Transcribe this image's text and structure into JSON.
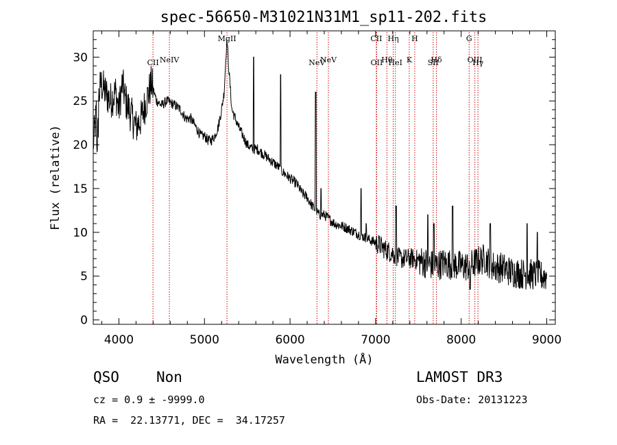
{
  "chart_data": {
    "type": "line",
    "title": "spec-56650-M31021N31M1_sp11-202.fits",
    "xlabel": "Wavelength (Å)",
    "ylabel": "Flux (relative)",
    "xlim": [
      3700,
      9100
    ],
    "ylim": [
      -0.5,
      33
    ],
    "xticks": [
      4000,
      5000,
      6000,
      7000,
      8000,
      9000
    ],
    "yticks": [
      0,
      5,
      10,
      15,
      20,
      25,
      30
    ],
    "series": [
      {
        "name": "spectrum",
        "x": [
          3700,
          3740,
          3790,
          3840,
          3900,
          3960,
          4000,
          4040,
          4080,
          4120,
          4160,
          4200,
          4260,
          4320,
          4380,
          4440,
          4500,
          4560,
          4600,
          4660,
          4720,
          4780,
          4840,
          4900,
          4960,
          5000,
          5040,
          5080,
          5120,
          5160,
          5200,
          5230,
          5255,
          5265,
          5275,
          5290,
          5320,
          5360,
          5400,
          5450,
          5500,
          5560,
          5620,
          5680,
          5740,
          5800,
          5860,
          5900,
          5960,
          6020,
          6080,
          6140,
          6200,
          6260,
          6300,
          6340,
          6400,
          6460,
          6520,
          6580,
          6640,
          6700,
          6760,
          6800,
          6840,
          6900,
          6960,
          7000,
          7040,
          7080,
          7120,
          7160,
          7200,
          7240,
          7280,
          7320,
          7380,
          7440,
          7500,
          7560,
          7620,
          7680,
          7740,
          7800,
          7860,
          7920,
          7980,
          8040,
          8100,
          8160,
          8220,
          8280,
          8340,
          8400,
          8460,
          8520,
          8580,
          8640,
          8700,
          8760,
          8820,
          8880,
          8940,
          9000
        ],
        "y": [
          20,
          24,
          27,
          26,
          25,
          26,
          24,
          27,
          25,
          24,
          23,
          22,
          23,
          25,
          27,
          25,
          24.5,
          25,
          24.8,
          24.5,
          24,
          23,
          23,
          22,
          21,
          21,
          20.5,
          20.5,
          21,
          22,
          24,
          26,
          31,
          32,
          30,
          28,
          24,
          23,
          22,
          21,
          20,
          19.5,
          19.5,
          19,
          18.5,
          18,
          17.5,
          17,
          16.5,
          16,
          15.5,
          14.5,
          14,
          13,
          12.5,
          12,
          12,
          11.5,
          11,
          10.8,
          10.6,
          10.3,
          10,
          9.8,
          9.6,
          9.3,
          9,
          8.8,
          8.6,
          8.3,
          8,
          7.8,
          7.6,
          7.3,
          7,
          7,
          7,
          7,
          6.8,
          6.6,
          6.4,
          6.2,
          6.3,
          6.5,
          6.4,
          6.3,
          6.2,
          6.1,
          6.2,
          6.5,
          6.8,
          7,
          6.4,
          6,
          6,
          5.8,
          5.5,
          5.4,
          5.3,
          5.2,
          5.2,
          5.1,
          5,
          5
        ]
      }
    ],
    "emission_spikes": [
      {
        "x": 5575,
        "height": 30
      },
      {
        "x": 5890,
        "height": 28
      },
      {
        "x": 6300,
        "height": 26
      },
      {
        "x": 6363,
        "height": 15
      },
      {
        "x": 6830,
        "height": 15
      },
      {
        "x": 6890,
        "height": 11
      },
      {
        "x": 7240,
        "height": 13
      },
      {
        "x": 7610,
        "height": 12
      },
      {
        "x": 7680,
        "height": 11
      },
      {
        "x": 7900,
        "height": 13
      },
      {
        "x": 8340,
        "height": 11
      },
      {
        "x": 8770,
        "height": 11
      },
      {
        "x": 8890,
        "height": 10
      }
    ],
    "spectral_lines": [
      {
        "x": 4398,
        "label": "CII",
        "tier": 3
      },
      {
        "x": 4590,
        "label": "NeIV",
        "tier": 2
      },
      {
        "x": 5263,
        "label": "MgII",
        "tier": 0
      },
      {
        "x": 6314,
        "label": "NeV",
        "tier": 3
      },
      {
        "x": 6448,
        "label": "NeV",
        "tier": 2
      },
      {
        "x": 7008,
        "label": "CII",
        "tier": 0
      },
      {
        "x": 7013,
        "label": "OII",
        "tier": 3
      },
      {
        "x": 7132,
        "label": "Hθ",
        "tier": 2
      },
      {
        "x": 7206,
        "label": "Hη",
        "tier": 0
      },
      {
        "x": 7231,
        "label": "HeI",
        "tier": 3
      },
      {
        "x": 7393,
        "label": "K",
        "tier": 2
      },
      {
        "x": 7457,
        "label": "H",
        "tier": 0
      },
      {
        "x": 7673,
        "label": "SII",
        "tier": 3
      },
      {
        "x": 7710,
        "label": "Hδ",
        "tier": 2
      },
      {
        "x": 8093,
        "label": "G",
        "tier": 0
      },
      {
        "x": 8160,
        "label": "OIII",
        "tier": 2
      },
      {
        "x": 8196,
        "label": "Hγ",
        "tier": 3
      }
    ]
  },
  "info": {
    "class": "QSO",
    "subclass": "Non",
    "survey": "LAMOST DR3",
    "cz": "cz = 0.9 ± -9999.0",
    "obs_date": "Obs-Date: 20131223",
    "coords": "RA =  22.13771, DEC =  34.17257"
  }
}
